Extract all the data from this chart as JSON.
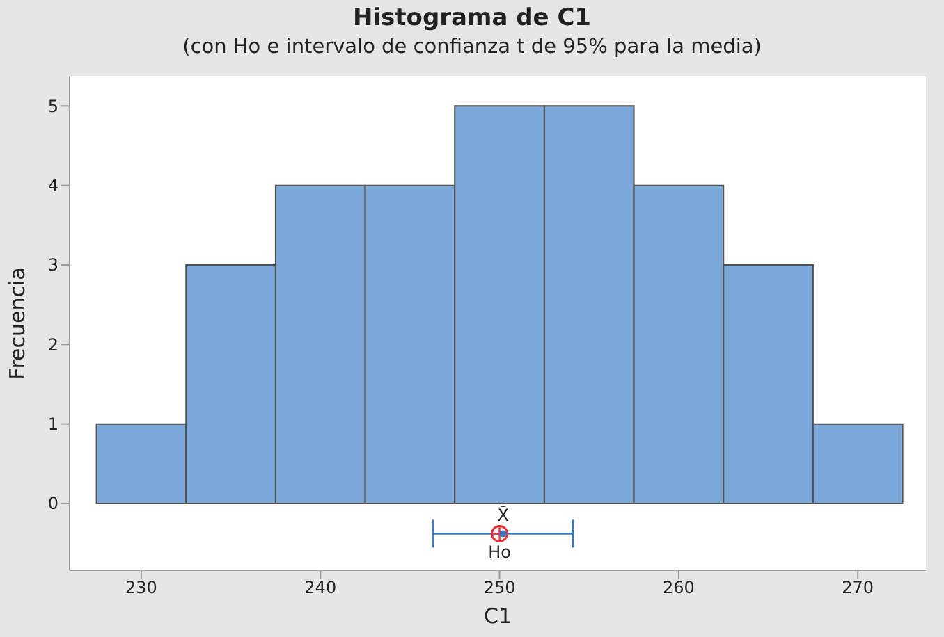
{
  "chart_data": {
    "type": "histogram",
    "title": "Histograma de C1",
    "subtitle": "(con Ho e intervalo de confianza t de 95% para la media)",
    "xlabel": "C1",
    "ylabel": "Frecuencia",
    "bins": [
      227.5,
      232.5,
      237.5,
      242.5,
      247.5,
      252.5,
      257.5,
      262.5,
      267.5,
      272.5
    ],
    "xlim": [
      226,
      273.8
    ],
    "xticks": [
      230,
      240,
      250,
      260,
      270
    ],
    "ylim": [
      -0.84,
      5.37
    ],
    "yticks": [
      0,
      1,
      2,
      3,
      4,
      5
    ],
    "grid": false,
    "legend": false,
    "series": [
      {
        "color": "#7ba7d9",
        "values": [
          1,
          3,
          4,
          4,
          5,
          5,
          4,
          3,
          1
        ]
      },
      {
        "type": "scatter",
        "color": "#3a78c2",
        "x": [
          250.2
        ],
        "values": [
          -0.38
        ],
        "xerrors": [
          [
            246.3,
            254.1
          ]
        ]
      },
      {
        "type": "scatter",
        "color": "#e8333a",
        "x": [
          250
        ],
        "values": [
          -0.38
        ]
      }
    ],
    "annotations": [
      {
        "text": "X̄",
        "x": 250.2,
        "y": -0.38
      },
      {
        "text": "Ho",
        "x": 250,
        "y": -0.38
      }
    ]
  }
}
